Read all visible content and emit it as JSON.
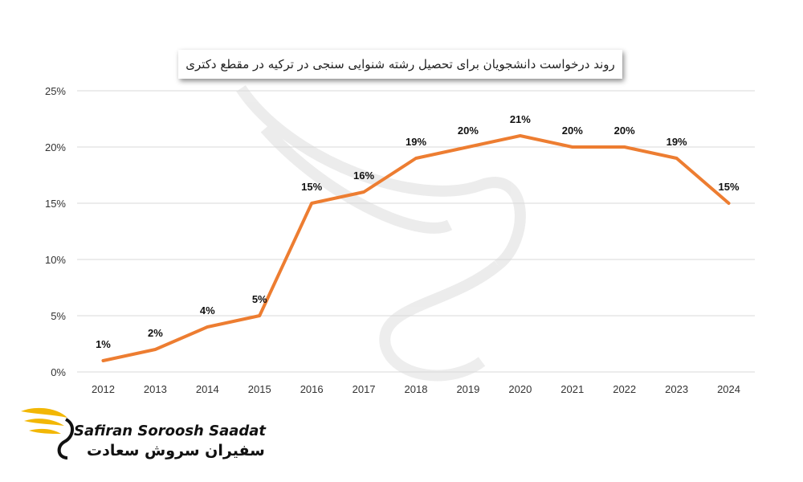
{
  "chart_data": {
    "type": "line",
    "title": "روند درخواست دانشجویان برای تحصیل رشته شنوایی سنجی در ترکیه در مقطع دکتری",
    "categories": [
      "2012",
      "2013",
      "2014",
      "2015",
      "2016",
      "2017",
      "2018",
      "2019",
      "2020",
      "2021",
      "2022",
      "2023",
      "2024"
    ],
    "values": [
      1,
      2,
      4,
      5,
      15,
      16,
      19,
      20,
      21,
      20,
      20,
      19,
      15
    ],
    "data_labels": [
      "1%",
      "2%",
      "4%",
      "5%",
      "15%",
      "16%",
      "19%",
      "20%",
      "21%",
      "20%",
      "20%",
      "19%",
      "15%"
    ],
    "yticks": [
      0,
      5,
      10,
      15,
      20,
      25
    ],
    "ytick_labels": [
      "0%",
      "5%",
      "10%",
      "15%",
      "20%",
      "25%"
    ],
    "ylim": [
      0,
      25
    ],
    "grid": true,
    "line_color": "#ed7d31"
  },
  "logo": {
    "text_en": "Safiran Soroosh Saadat",
    "text_fa": "سفیران سروش سعادت",
    "accent_color": "#f2b705"
  }
}
